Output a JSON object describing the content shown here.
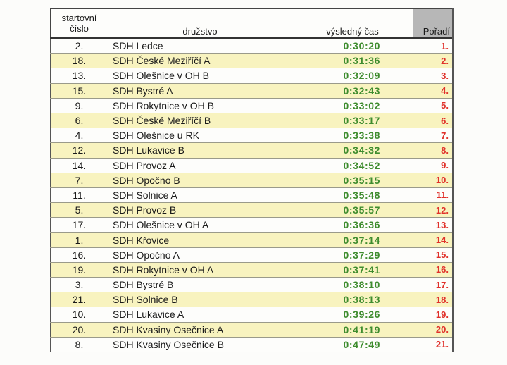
{
  "header": {
    "start_number_line1": "startovní",
    "start_number_line2": "číslo",
    "team": "družstvo",
    "result_time": "výsledný čas",
    "rank": "Pořadí"
  },
  "rows": [
    {
      "start": "2.",
      "team": "SDH Ledce",
      "time": "0:30:20",
      "rank": "1."
    },
    {
      "start": "18.",
      "team": "SDH České Meziříčí A",
      "time": "0:31:36",
      "rank": "2."
    },
    {
      "start": "13.",
      "team": "SDH Olešnice v OH B",
      "time": "0:32:09",
      "rank": "3."
    },
    {
      "start": "15.",
      "team": "SDH Bystré A",
      "time": "0:32:43",
      "rank": "4."
    },
    {
      "start": "9.",
      "team": "SDH Rokytnice v OH B",
      "time": "0:33:02",
      "rank": "5."
    },
    {
      "start": "6.",
      "team": "SDH České Meziříčí B",
      "time": "0:33:17",
      "rank": "6."
    },
    {
      "start": "4.",
      "team": "SDH Olešnice u RK",
      "time": "0:33:38",
      "rank": "7."
    },
    {
      "start": "12.",
      "team": "SDH Lukavice B",
      "time": "0:34:32",
      "rank": "8."
    },
    {
      "start": "14.",
      "team": "SDH Provoz A",
      "time": "0:34:52",
      "rank": "9."
    },
    {
      "start": "7.",
      "team": "SDH Opočno B",
      "time": "0:35:15",
      "rank": "10."
    },
    {
      "start": "11.",
      "team": "SDH Solnice A",
      "time": "0:35:48",
      "rank": "11."
    },
    {
      "start": "5.",
      "team": "SDH Provoz B",
      "time": "0:35:57",
      "rank": "12."
    },
    {
      "start": "17.",
      "team": "SDH Olešnice v OH A",
      "time": "0:36:36",
      "rank": "13."
    },
    {
      "start": "1.",
      "team": "SDH Křovice",
      "time": "0:37:14",
      "rank": "14."
    },
    {
      "start": "16.",
      "team": "SDH Opočno A",
      "time": "0:37:29",
      "rank": "15."
    },
    {
      "start": "19.",
      "team": "SDH Rokytnice v OH A",
      "time": "0:37:41",
      "rank": "16."
    },
    {
      "start": "3.",
      "team": "SDH Bystré B",
      "time": "0:38:10",
      "rank": "17."
    },
    {
      "start": "21.",
      "team": "SDH Solnice B",
      "time": "0:38:13",
      "rank": "18."
    },
    {
      "start": "10.",
      "team": "SDH Lukavice A",
      "time": "0:39:26",
      "rank": "19."
    },
    {
      "start": "20.",
      "team": "SDH Kvasiny Osečnice A",
      "time": "0:41:19",
      "rank": "20."
    },
    {
      "start": "8.",
      "team": "SDH Kvasiny Osečnice B",
      "time": "0:47:49",
      "rank": "21."
    }
  ],
  "colors": {
    "time_green": "#3e8c2e",
    "rank_red": "#e0302a",
    "stripe_yellow": "#f8f3bf",
    "rank_header_gray": "#b7b7b7"
  }
}
